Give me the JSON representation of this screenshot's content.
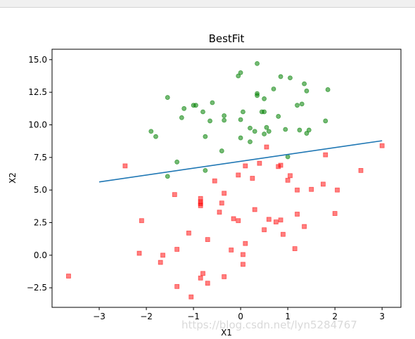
{
  "chart_data": {
    "type": "scatter",
    "title": "BestFit",
    "xlabel": "X1",
    "ylabel": "X2",
    "xlim": [
      -4.0,
      3.4
    ],
    "ylim": [
      -4.0,
      15.8
    ],
    "xticks": [
      -3,
      -2,
      -1,
      0,
      1,
      2,
      3
    ],
    "yticks": [
      -2.5,
      0.0,
      2.5,
      5.0,
      7.5,
      10.0,
      12.5,
      15.0
    ],
    "xtick_labels": [
      "−3",
      "−2",
      "−1",
      "0",
      "1",
      "2",
      "3"
    ],
    "ytick_labels": [
      "−2.5",
      "0.0",
      "2.5",
      "5.0",
      "7.5",
      "10.0",
      "12.5",
      "15.0"
    ],
    "grid": false,
    "series": [
      {
        "kind": "scatter",
        "marker": "square",
        "color": "#ff0000",
        "points": [
          [
            -3.65,
            -1.6
          ],
          [
            -2.45,
            6.85
          ],
          [
            -2.1,
            2.65
          ],
          [
            -2.15,
            0.15
          ],
          [
            -1.65,
            0.0
          ],
          [
            -1.7,
            -0.55
          ],
          [
            -1.4,
            4.65
          ],
          [
            -1.35,
            0.45
          ],
          [
            -1.35,
            -2.4
          ],
          [
            -1.1,
            1.7
          ],
          [
            -1.05,
            -3.2
          ],
          [
            -0.85,
            4.35
          ],
          [
            -0.85,
            4.1
          ],
          [
            -0.85,
            3.95
          ],
          [
            -0.85,
            3.8
          ],
          [
            -0.8,
            -1.4
          ],
          [
            -0.85,
            -1.75
          ],
          [
            -0.7,
            1.2
          ],
          [
            -0.7,
            -2.15
          ],
          [
            -0.55,
            5.7
          ],
          [
            -0.45,
            3.3
          ],
          [
            -0.4,
            4.0
          ],
          [
            -0.35,
            4.75
          ],
          [
            -0.35,
            -1.65
          ],
          [
            -0.2,
            0.4
          ],
          [
            -0.15,
            2.8
          ],
          [
            -0.05,
            6.15
          ],
          [
            -0.05,
            2.65
          ],
          [
            0.05,
            0.05
          ],
          [
            0.05,
            -0.7
          ],
          [
            0.1,
            6.85
          ],
          [
            0.1,
            0.9
          ],
          [
            0.25,
            5.9
          ],
          [
            0.3,
            3.5
          ],
          [
            0.4,
            7.05
          ],
          [
            0.5,
            1.95
          ],
          [
            0.55,
            8.3
          ],
          [
            0.6,
            2.75
          ],
          [
            0.75,
            2.55
          ],
          [
            0.85,
            6.9
          ],
          [
            0.9,
            1.6
          ],
          [
            1.0,
            5.75
          ],
          [
            1.05,
            6.1
          ],
          [
            1.15,
            0.5
          ],
          [
            1.2,
            3.15
          ],
          [
            1.2,
            5.0
          ],
          [
            1.35,
            2.2
          ],
          [
            1.5,
            5.05
          ],
          [
            1.75,
            5.45
          ],
          [
            1.8,
            7.7
          ],
          [
            2.0,
            3.2
          ],
          [
            2.05,
            5.0
          ],
          [
            2.55,
            6.5
          ],
          [
            3.0,
            8.4
          ],
          [
            0.85,
            2.7
          ],
          [
            0.8,
            6.8
          ]
        ]
      },
      {
        "kind": "scatter",
        "marker": "circle",
        "color": "#008000",
        "points": [
          [
            -1.9,
            9.5
          ],
          [
            -1.8,
            9.1
          ],
          [
            -1.55,
            6.05
          ],
          [
            -1.55,
            12.1
          ],
          [
            -1.35,
            7.15
          ],
          [
            -1.25,
            10.55
          ],
          [
            -1.2,
            11.25
          ],
          [
            -1.0,
            11.5
          ],
          [
            -0.95,
            11.5
          ],
          [
            -0.8,
            11.0
          ],
          [
            -0.75,
            6.5
          ],
          [
            -0.75,
            9.1
          ],
          [
            -0.65,
            10.3
          ],
          [
            -0.6,
            11.7
          ],
          [
            -0.4,
            8.0
          ],
          [
            -0.35,
            10.35
          ],
          [
            -0.35,
            10.7
          ],
          [
            -0.05,
            13.75
          ],
          [
            0.0,
            14.0
          ],
          [
            0.0,
            9.0
          ],
          [
            0.05,
            11.0
          ],
          [
            0.0,
            10.4
          ],
          [
            0.2,
            8.7
          ],
          [
            0.2,
            9.75
          ],
          [
            0.3,
            9.5
          ],
          [
            0.35,
            14.7
          ],
          [
            0.35,
            12.4
          ],
          [
            0.35,
            12.25
          ],
          [
            0.45,
            11.0
          ],
          [
            0.5,
            12.0
          ],
          [
            0.5,
            11.0
          ],
          [
            0.5,
            9.3
          ],
          [
            0.55,
            9.8
          ],
          [
            0.6,
            9.5
          ],
          [
            0.7,
            12.75
          ],
          [
            0.8,
            10.65
          ],
          [
            0.85,
            13.7
          ],
          [
            0.95,
            9.65
          ],
          [
            1.0,
            7.55
          ],
          [
            1.05,
            13.6
          ],
          [
            1.2,
            11.5
          ],
          [
            1.25,
            9.6
          ],
          [
            1.3,
            11.6
          ],
          [
            1.35,
            13.15
          ],
          [
            1.4,
            12.6
          ],
          [
            1.4,
            9.35
          ],
          [
            1.45,
            9.6
          ],
          [
            1.8,
            10.3
          ],
          [
            1.85,
            12.7
          ]
        ]
      },
      {
        "kind": "line",
        "color": "#1f77b4",
        "points": [
          [
            -3.0,
            5.62
          ],
          [
            3.0,
            8.78
          ]
        ]
      }
    ]
  },
  "watermark": "https://blog.csdn.net/lyn5284767"
}
